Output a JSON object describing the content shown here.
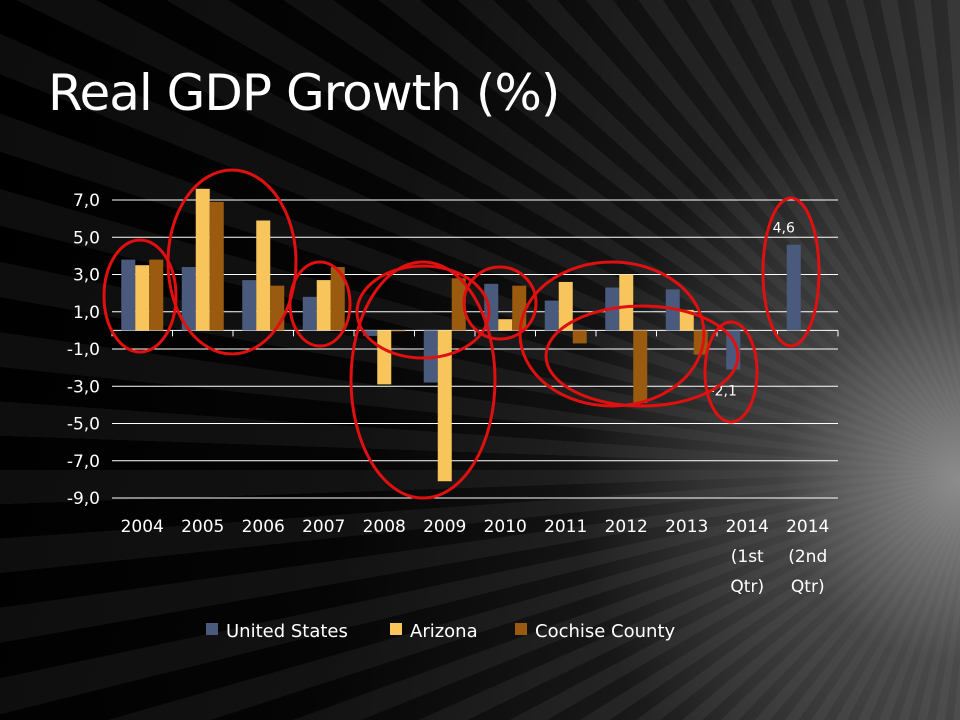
{
  "slide": {
    "title": "Real GDP Growth (%)"
  },
  "chart_data": {
    "type": "bar",
    "categories": [
      "2004",
      "2005",
      "2006",
      "2007",
      "2008",
      "2009",
      "2010",
      "2011",
      "2012",
      "2013",
      "2014 (1st Qtr)",
      "2014 (2nd Qtr)"
    ],
    "category_lines": [
      [
        "2004"
      ],
      [
        "2005"
      ],
      [
        "2006"
      ],
      [
        "2007"
      ],
      [
        "2008"
      ],
      [
        "2009"
      ],
      [
        "2010"
      ],
      [
        "2011"
      ],
      [
        "2012"
      ],
      [
        "2013"
      ],
      [
        "2014",
        "(1st",
        "Qtr)"
      ],
      [
        "2014",
        "(2nd",
        "Qtr)"
      ]
    ],
    "series": [
      {
        "name": "United States",
        "color": "#4a5a7c",
        "values": [
          3.8,
          3.4,
          2.7,
          1.8,
          -0.3,
          -2.8,
          2.5,
          1.6,
          2.3,
          2.2,
          -2.1,
          4.6
        ]
      },
      {
        "name": "Arizona",
        "color": "#f8c45c",
        "values": [
          3.5,
          7.6,
          5.9,
          2.7,
          -2.9,
          -8.1,
          0.6,
          2.6,
          3.0,
          1.1,
          null,
          null
        ]
      },
      {
        "name": "Cochise County",
        "color": "#9a5a10",
        "values": [
          3.8,
          6.9,
          2.4,
          3.4,
          0.0,
          2.8,
          2.4,
          -0.7,
          -3.9,
          -1.3,
          null,
          null
        ]
      }
    ],
    "data_labels": [
      {
        "category_index": 10,
        "series_index": 0,
        "text": "-2,1"
      },
      {
        "category_index": 11,
        "series_index": 0,
        "text": "4,6"
      }
    ],
    "y_ticks": [
      "7,0",
      "5,0",
      "3,0",
      "1,0",
      "-1,0",
      "-3,0",
      "-5,0",
      "-7,0",
      "-9,0"
    ],
    "y_tick_values": [
      7,
      5,
      3,
      1,
      -1,
      -3,
      -5,
      -7,
      -9
    ],
    "ylim": [
      -9,
      8
    ],
    "grid": true,
    "legend_position": "bottom",
    "annotation_color": "#e01010"
  }
}
